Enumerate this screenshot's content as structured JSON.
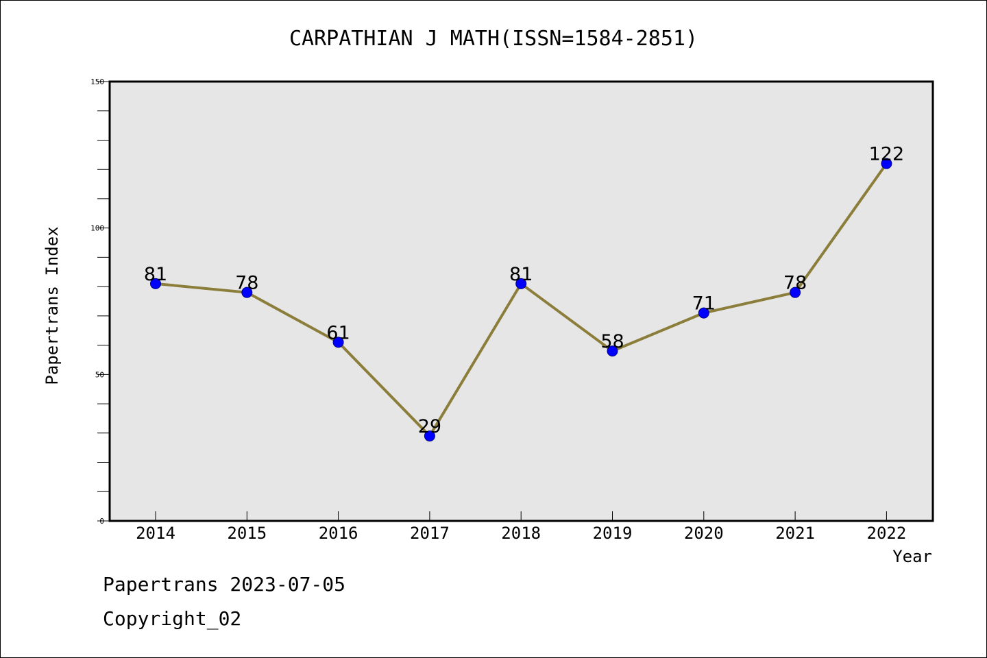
{
  "chart_data": {
    "type": "line",
    "title": "CARPATHIAN J MATH(ISSN=1584-2851)",
    "xlabel": "Year",
    "ylabel": "Papertrans Index",
    "categories": [
      "2014",
      "2015",
      "2016",
      "2017",
      "2018",
      "2019",
      "2020",
      "2021",
      "2022"
    ],
    "values": [
      81,
      78,
      61,
      29,
      81,
      58,
      71,
      78,
      122
    ],
    "ylim": [
      0,
      150
    ],
    "yticks": [
      0,
      50,
      100,
      150
    ],
    "grid": false,
    "data_labels": true,
    "colors": {
      "line": "#8b7d3a",
      "marker": "#0000ff",
      "plot_background": "#e6e6e6"
    }
  },
  "footer": {
    "line1": "Papertrans 2023-07-05",
    "line2": "Copyright_02"
  }
}
